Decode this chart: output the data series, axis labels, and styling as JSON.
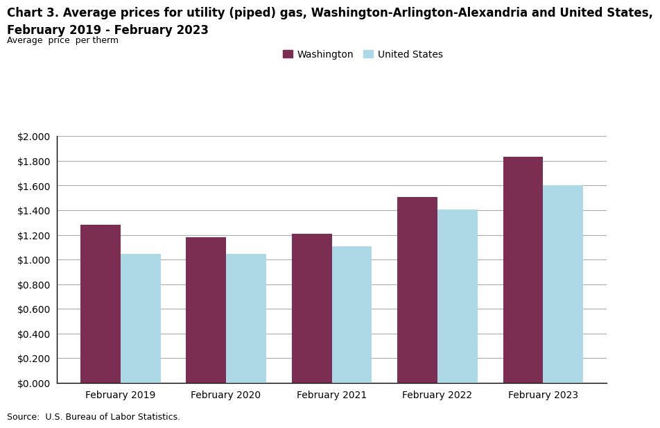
{
  "title_line1": "Chart 3. Average prices for utility (piped) gas, Washington-Arlington-Alexandria and United States,",
  "title_line2": "February 2019 - February 2023",
  "ylabel": "Average  price  per therm",
  "source": "Source:  U.S. Bureau of Labor Statistics.",
  "categories": [
    "February 2019",
    "February 2020",
    "February 2021",
    "February 2022",
    "February 2023"
  ],
  "washington_values": [
    1.279,
    1.178,
    1.208,
    1.507,
    1.833
  ],
  "us_values": [
    1.048,
    1.047,
    1.107,
    1.404,
    1.601
  ],
  "washington_color": "#7B2D52",
  "us_color": "#ADD8E6",
  "ylim": [
    0,
    2.0
  ],
  "yticks": [
    0.0,
    0.2,
    0.4,
    0.6,
    0.8,
    1.0,
    1.2,
    1.4,
    1.6,
    1.8,
    2.0
  ],
  "legend_washington": "Washington",
  "legend_us": "United States",
  "background_color": "#FFFFFF",
  "bar_width": 0.38,
  "title_fontsize": 12,
  "axis_label_fontsize": 9,
  "tick_fontsize": 10,
  "source_fontsize": 9
}
